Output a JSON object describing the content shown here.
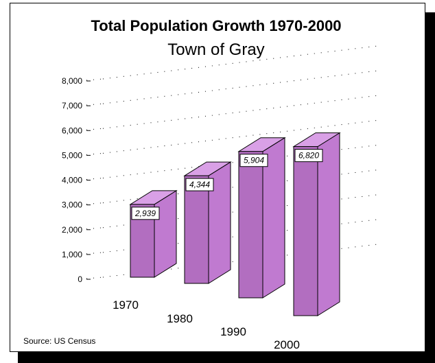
{
  "chart_data": {
    "type": "bar",
    "title": "Total Population Growth 1970-2000",
    "subtitle": "Town of Gray",
    "xlabel": "",
    "ylabel": "",
    "categories": [
      "1970",
      "1980",
      "1990",
      "2000"
    ],
    "values": [
      2939,
      4344,
      5904,
      6820
    ],
    "data_labels": [
      "2,939",
      "4,344",
      "5,904",
      "6,820"
    ],
    "y_ticks": [
      {
        "value": 0,
        "label": "0"
      },
      {
        "value": 1000,
        "label": "1,000"
      },
      {
        "value": 2000,
        "label": "2,000"
      },
      {
        "value": 3000,
        "label": "3,000"
      },
      {
        "value": 4000,
        "label": "4,000"
      },
      {
        "value": 5000,
        "label": "5,000"
      },
      {
        "value": 6000,
        "label": "6,000"
      },
      {
        "value": 7000,
        "label": "7,000"
      },
      {
        "value": 8000,
        "label": "8,000"
      }
    ],
    "ylim": [
      0,
      8000
    ],
    "grid": true,
    "style": "3d-columns",
    "colors": {
      "front": "#b26ec0",
      "side": "#c07ad0",
      "top": "#d9a0e6"
    },
    "source": "Source: US Census"
  }
}
